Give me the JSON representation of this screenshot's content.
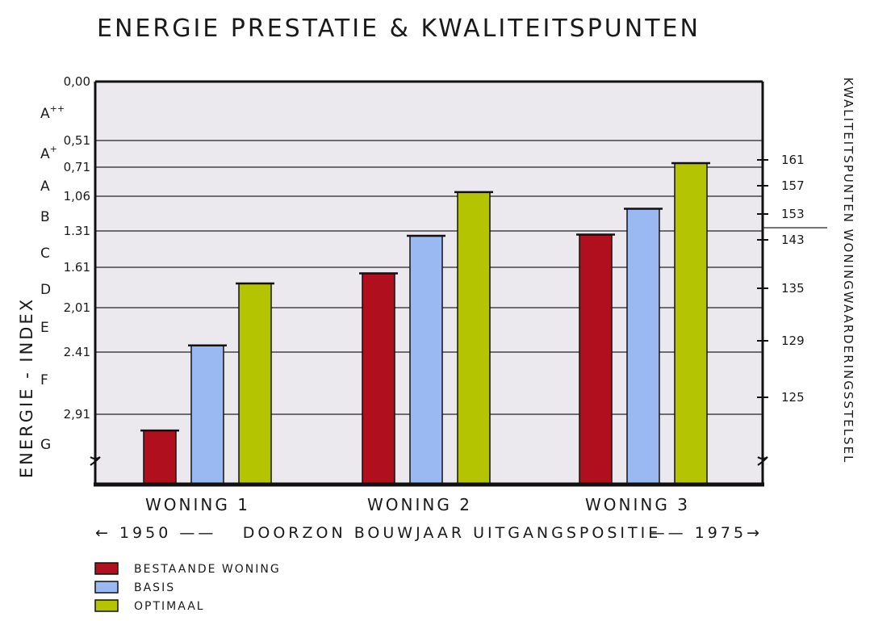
{
  "chart_data": {
    "type": "bar",
    "title": "ENERGIE PRESTATIE & KWALITEITSPUNTEN",
    "categories": [
      "WONING 1",
      "WONING 2",
      "WONING 3"
    ],
    "xlabel": "DOORZON BOUWJAAR UITGANGSPOSITIE",
    "x_range_labels": [
      "← 1950 ——",
      "—— 1975→"
    ],
    "ylabel": "ENERGIE - INDEX",
    "y2label": "KWALITEITSPUNTEN WONINGWAARDERINGSSTELSEL",
    "y_axis": {
      "scale": "reversed",
      "ticks": [
        {
          "value": 0.0,
          "label": "0,00"
        },
        {
          "value": 0.51,
          "label": "0,51"
        },
        {
          "value": 0.71,
          "label": "0,71"
        },
        {
          "value": 1.06,
          "label": "1,06"
        },
        {
          "value": 1.31,
          "label": "1.31"
        },
        {
          "value": 1.61,
          "label": "1.61"
        },
        {
          "value": 2.01,
          "label": "2,01"
        },
        {
          "value": 2.41,
          "label": "2.41"
        },
        {
          "value": 2.91,
          "label": "2,91"
        }
      ],
      "energy_labels": [
        "A++",
        "A+",
        "A",
        "B",
        "C",
        "D",
        "E",
        "F",
        "G"
      ]
    },
    "y2_axis": {
      "ticks": [
        125,
        129,
        135,
        143,
        153,
        157,
        161
      ]
    },
    "series": [
      {
        "name": "BESTAANDE WONING",
        "color": "#b0101e",
        "values": [
          3.0,
          1.67,
          1.34
        ]
      },
      {
        "name": "BASIS",
        "color": "#9ab8f2",
        "values": [
          2.35,
          1.35,
          1.15
        ]
      },
      {
        "name": "OPTIMAAL",
        "color": "#b4c400",
        "values": [
          1.77,
          1.01,
          0.68
        ]
      }
    ],
    "legend": "bottom-left",
    "grid": true
  }
}
